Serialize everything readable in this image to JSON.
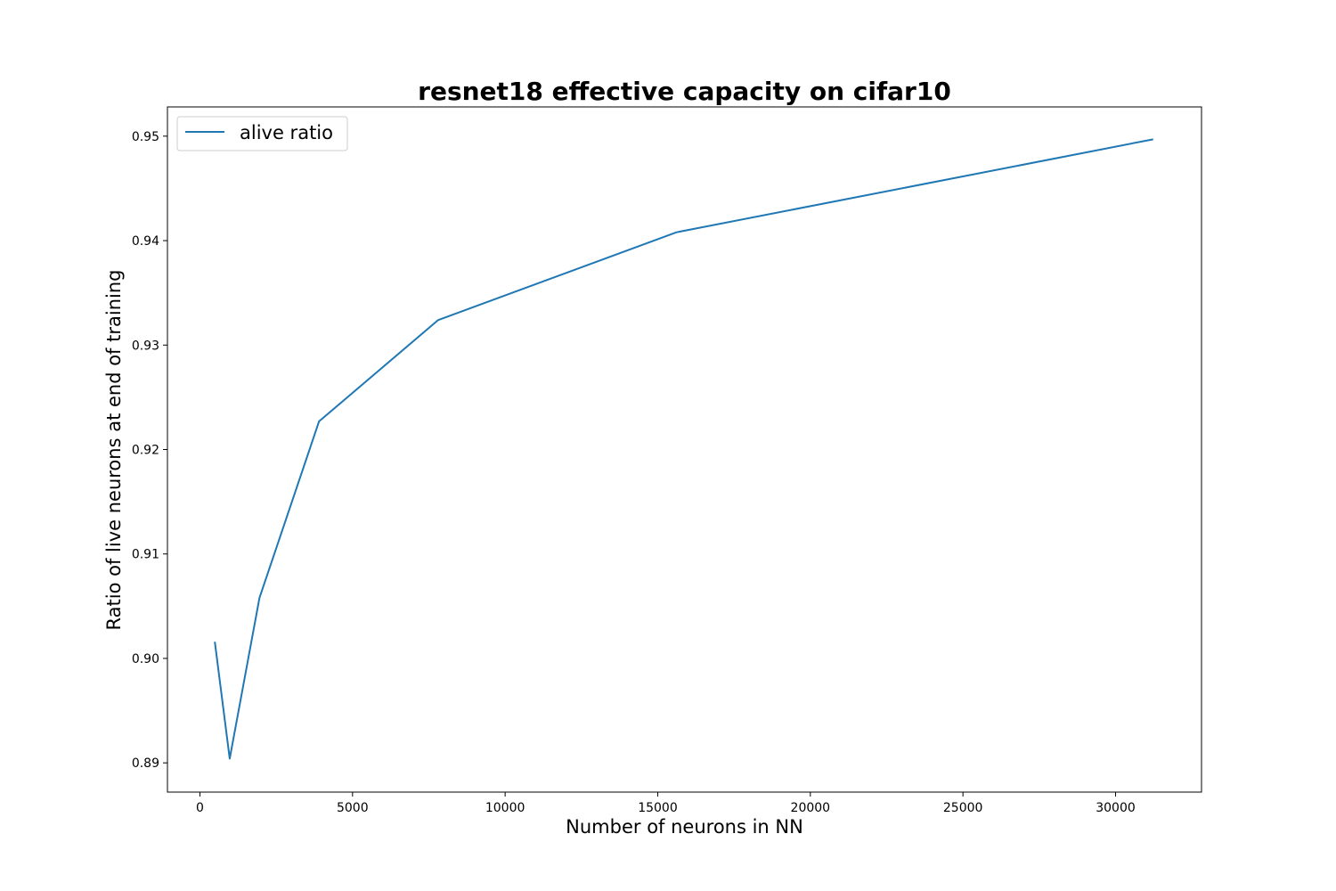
{
  "chart_data": {
    "type": "line",
    "title": "resnet18 effective capacity on cifar10",
    "xlabel": "Number of neurons in NN",
    "ylabel": "Ratio of live neurons at end of training",
    "xlim": [
      -1064,
      32816
    ],
    "ylim": [
      0.8872,
      0.9528
    ],
    "xticks": [
      0,
      5000,
      10000,
      15000,
      20000,
      25000,
      30000
    ],
    "xtick_labels": [
      "0",
      "5000",
      "10000",
      "15000",
      "20000",
      "25000",
      "30000"
    ],
    "yticks": [
      0.89,
      0.9,
      0.91,
      0.92,
      0.93,
      0.94,
      0.95
    ],
    "ytick_labels": [
      "0.89",
      "0.90",
      "0.91",
      "0.92",
      "0.93",
      "0.94",
      "0.95"
    ],
    "grid": false,
    "legend_position": "top-left",
    "series": [
      {
        "name": "alive ratio",
        "color": "#1f77b4",
        "x": [
          488,
          976,
          1952,
          3904,
          7808,
          15616,
          31232
        ],
        "y": [
          0.9016,
          0.8904,
          0.9058,
          0.9227,
          0.9324,
          0.9408,
          0.9497
        ]
      }
    ]
  }
}
